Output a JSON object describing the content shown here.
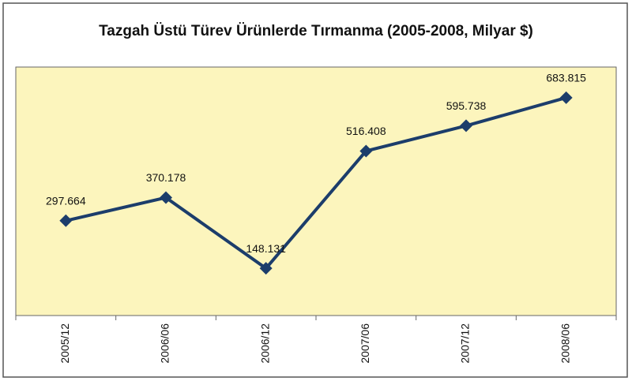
{
  "chart_data": {
    "type": "line",
    "title": "Tazgah Üstü Türev Ürünlerde Tırmanma (2005-2008, Milyar $)",
    "categories": [
      "2005/12",
      "2006/06",
      "2006/12",
      "2007/06",
      "2007/12",
      "2008/06"
    ],
    "values": [
      297664,
      370178,
      148131,
      516408,
      595738,
      683815
    ],
    "value_labels": [
      "297.664",
      "370.178",
      "148.131",
      "516.408",
      "595.738",
      "683.815"
    ],
    "color": "#1c3d6b",
    "ylim": [
      0,
      780000
    ]
  }
}
